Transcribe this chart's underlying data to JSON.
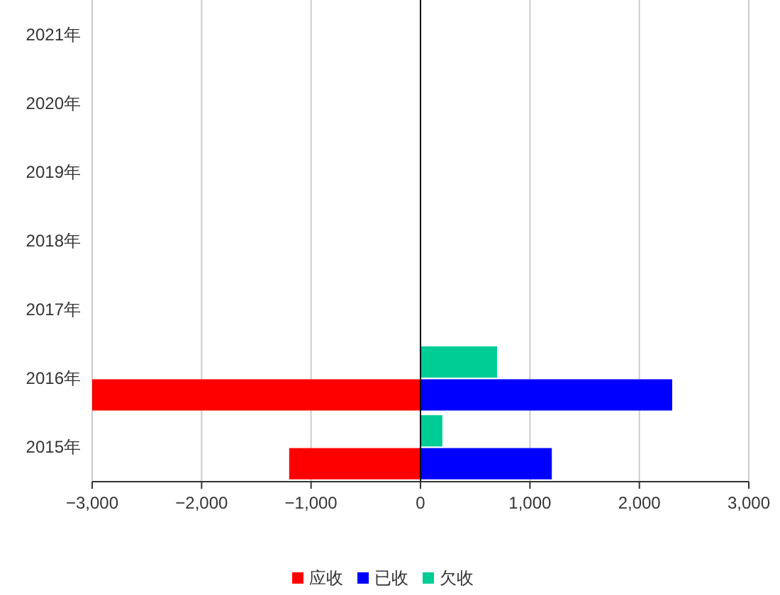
{
  "chart_data": {
    "type": "bar",
    "orientation": "horizontal",
    "categories": [
      "2021年",
      "2020年",
      "2019年",
      "2018年",
      "2017年",
      "2016年",
      "2015年"
    ],
    "series": [
      {
        "name": "应收",
        "color": "#ff0000",
        "values": [
          null,
          null,
          null,
          null,
          null,
          -3000,
          -1200
        ]
      },
      {
        "name": "已收",
        "color": "#0000ff",
        "values": [
          null,
          null,
          null,
          null,
          null,
          2300,
          1200
        ]
      },
      {
        "name": "欠收",
        "color": "#00cc96",
        "values": [
          null,
          null,
          null,
          null,
          null,
          700,
          200
        ]
      }
    ],
    "xlim": [
      -3000,
      3000
    ],
    "xticks": [
      {
        "value": -3000,
        "label": "−3,000"
      },
      {
        "value": -2000,
        "label": "−2,000"
      },
      {
        "value": -1000,
        "label": "−1,000"
      },
      0,
      {
        "value": 1000,
        "label": "1,000"
      },
      {
        "value": 2000,
        "label": "2,000"
      },
      {
        "value": 3000,
        "label": "3,000"
      }
    ],
    "grid": "x",
    "legend": "bottom"
  }
}
